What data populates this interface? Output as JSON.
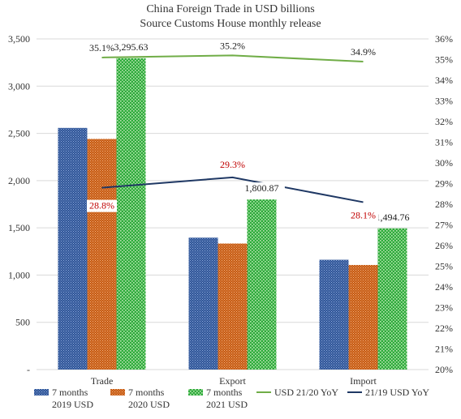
{
  "chart_data": {
    "type": "bar",
    "title": "China Foreign Trade in USD billions",
    "subtitle": "Source Customs House monthly release",
    "categories": [
      "Trade",
      "Export",
      "Import"
    ],
    "ylim": [
      0,
      3500
    ],
    "y_ticks": [
      "-",
      "500",
      "1,000",
      "1,500",
      "2,000",
      "2,500",
      "3,000",
      "3,500"
    ],
    "y2lim": [
      0.2,
      0.36
    ],
    "y2_ticks": [
      "20%",
      "21%",
      "22%",
      "23%",
      "24%",
      "25%",
      "26%",
      "27%",
      "28%",
      "29%",
      "30%",
      "31%",
      "32%",
      "33%",
      "34%",
      "35%",
      "36%"
    ],
    "grid": true,
    "legend_position": "bottom",
    "series": [
      {
        "name": "7 months 2019 USD",
        "legend_line1": "7 months",
        "legend_line2": "2019 USD",
        "type": "bar",
        "axis": "left",
        "color": "#2f5597",
        "values": [
          2558,
          1396,
          1162
        ]
      },
      {
        "name": "7 months 2020 USD",
        "legend_line1": "7 months",
        "legend_line2": "2020 USD",
        "type": "bar",
        "axis": "left",
        "color": "#c55a11",
        "values": [
          2441,
          1334,
          1107
        ]
      },
      {
        "name": "7 months 2021 USD",
        "legend_line1": "7 months",
        "legend_line2": "2021 USD",
        "type": "bar",
        "axis": "left",
        "color": "#2eab3c",
        "values": [
          3295.63,
          1800.87,
          1494.76
        ],
        "labels": [
          "3,295.63",
          "1,800.87",
          "1,494.76"
        ]
      },
      {
        "name": "USD 21/20 YoY",
        "type": "line",
        "axis": "right",
        "color": "#70ad47",
        "values": [
          0.351,
          0.352,
          0.349
        ],
        "labels": [
          "35.1%",
          "35.2%",
          "34.9%"
        ]
      },
      {
        "name": "21/19 USD YoY",
        "type": "line",
        "axis": "right",
        "color": "#1f3864",
        "values": [
          0.288,
          0.293,
          0.281
        ],
        "labels": [
          "28.8%",
          "29.3%",
          "28.1%"
        ],
        "label_color": "#c00000"
      }
    ]
  }
}
